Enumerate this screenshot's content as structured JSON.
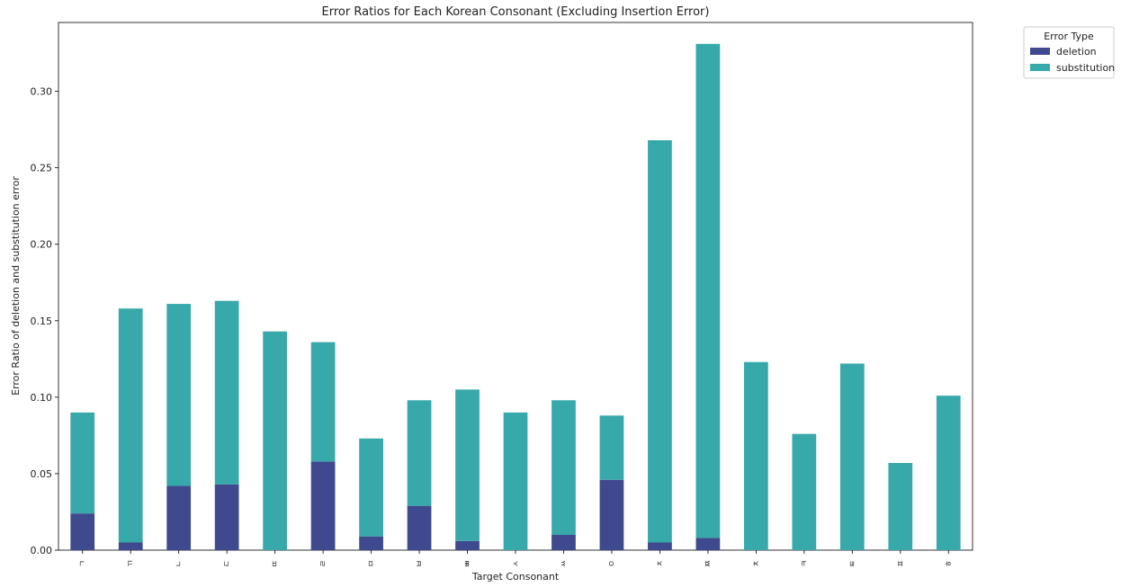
{
  "chart_data": {
    "type": "bar",
    "stacked": true,
    "title": "Error Ratios for Each Korean Consonant (Excluding Insertion Error)",
    "xlabel": "Target Consonant",
    "ylabel": "Error Ratio of deletion and substitution error",
    "ylim": [
      0,
      0.345
    ],
    "yticks": [
      "0.00",
      "0.05",
      "0.10",
      "0.15",
      "0.20",
      "0.25",
      "0.30"
    ],
    "grid": false,
    "legend": {
      "title": "Error Type",
      "placement": "outside-top-right"
    },
    "categories": [
      "ㄱ",
      "ㄲ",
      "ㄴ",
      "ㄷ",
      "ㄸ",
      "ㄹ",
      "ㅁ",
      "ㅂ",
      "ㅃ",
      "ㅅ",
      "ㅆ",
      "ㅇ",
      "ㅈ",
      "ㅉ",
      "ㅊ",
      "ㅋ",
      "ㅌ",
      "ㅍ",
      "ㅎ"
    ],
    "series": [
      {
        "name": "deletion",
        "color": "#3f4a8e",
        "values": [
          0.024,
          0.005,
          0.042,
          0.043,
          0.0,
          0.058,
          0.009,
          0.029,
          0.006,
          0.0,
          0.01,
          0.046,
          0.005,
          0.008,
          0.0,
          0.0,
          0.0,
          0.0,
          0.0
        ]
      },
      {
        "name": "substitution",
        "color": "#38a9ab",
        "values": [
          0.066,
          0.153,
          0.119,
          0.12,
          0.143,
          0.078,
          0.064,
          0.069,
          0.099,
          0.09,
          0.088,
          0.042,
          0.263,
          0.323,
          0.123,
          0.076,
          0.122,
          0.057,
          0.101
        ]
      }
    ]
  }
}
